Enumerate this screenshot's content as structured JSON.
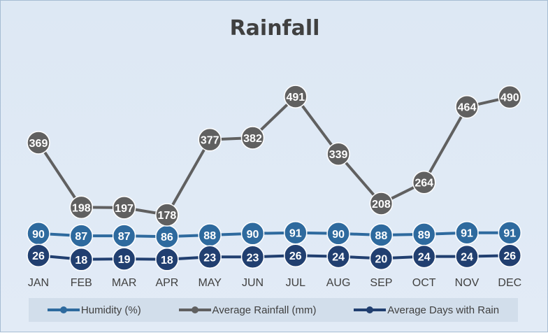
{
  "chart_data": {
    "type": "line",
    "title": "Rainfall",
    "categories": [
      "JAN",
      "FEB",
      "MAR",
      "APR",
      "MAY",
      "JUN",
      "JUL",
      "AUG",
      "SEP",
      "OCT",
      "NOV",
      "DEC"
    ],
    "series": [
      {
        "name": "Humidity (%)",
        "color": "#2e6a9e",
        "values": [
          90,
          87,
          87,
          86,
          88,
          90,
          91,
          90,
          88,
          89,
          91,
          91
        ]
      },
      {
        "name": "Average Rainfall (mm)",
        "color": "#606060",
        "values": [
          369,
          198,
          197,
          178,
          377,
          382,
          491,
          339,
          208,
          264,
          464,
          490
        ]
      },
      {
        "name": "Average Days with Rain",
        "color": "#213f70",
        "values": [
          26,
          18,
          19,
          18,
          23,
          23,
          26,
          24,
          20,
          24,
          24,
          26
        ]
      }
    ],
    "legend_position": "bottom",
    "grid": false
  }
}
